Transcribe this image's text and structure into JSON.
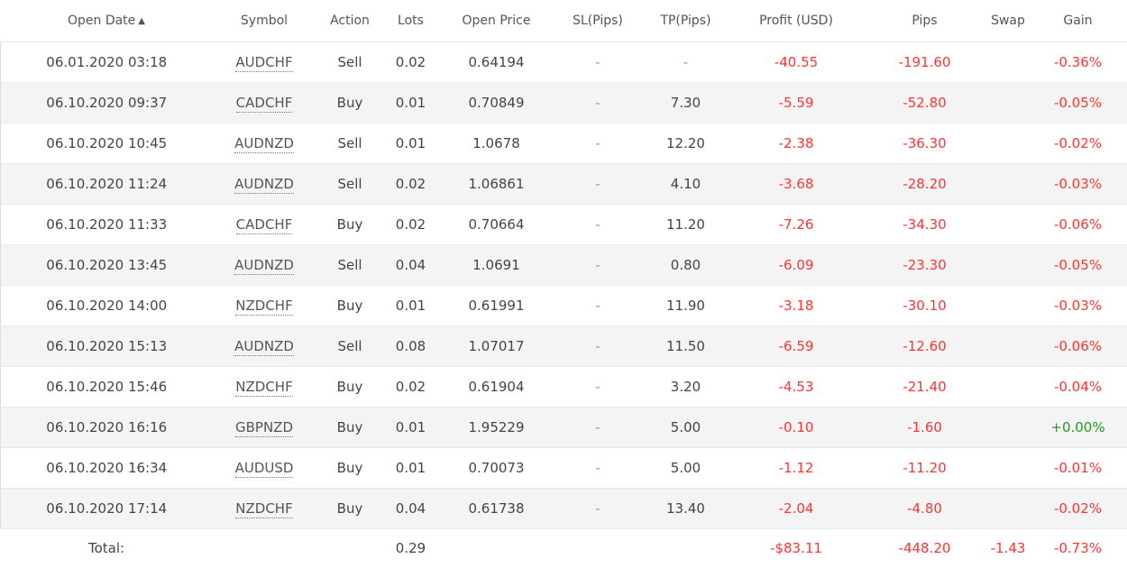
{
  "headers": {
    "open_date": "Open Date",
    "sort_arrow": "▲",
    "symbol": "Symbol",
    "action": "Action",
    "lots": "Lots",
    "open_price": "Open Price",
    "sl": "SL(Pips)",
    "tp": "TP(Pips)",
    "profit": "Profit (USD)",
    "pips": "Pips",
    "swap": "Swap",
    "gain": "Gain"
  },
  "rows": [
    {
      "date": "06.01.2020 03:18",
      "symbol": "AUDCHF",
      "action": "Sell",
      "lots": "0.02",
      "price": "0.64194",
      "sl": "-",
      "tp": "-",
      "profit": "-40.55",
      "pips": "-191.60",
      "swap": "",
      "gain": "-0.36%"
    },
    {
      "date": "06.10.2020 09:37",
      "symbol": "CADCHF",
      "action": "Buy",
      "lots": "0.01",
      "price": "0.70849",
      "sl": "-",
      "tp": "7.30",
      "profit": "-5.59",
      "pips": "-52.80",
      "swap": "",
      "gain": "-0.05%"
    },
    {
      "date": "06.10.2020 10:45",
      "symbol": "AUDNZD",
      "action": "Sell",
      "lots": "0.01",
      "price": "1.0678",
      "sl": "-",
      "tp": "12.20",
      "profit": "-2.38",
      "pips": "-36.30",
      "swap": "",
      "gain": "-0.02%"
    },
    {
      "date": "06.10.2020 11:24",
      "symbol": "AUDNZD",
      "action": "Sell",
      "lots": "0.02",
      "price": "1.06861",
      "sl": "-",
      "tp": "4.10",
      "profit": "-3.68",
      "pips": "-28.20",
      "swap": "",
      "gain": "-0.03%"
    },
    {
      "date": "06.10.2020 11:33",
      "symbol": "CADCHF",
      "action": "Buy",
      "lots": "0.02",
      "price": "0.70664",
      "sl": "-",
      "tp": "11.20",
      "profit": "-7.26",
      "pips": "-34.30",
      "swap": "",
      "gain": "-0.06%"
    },
    {
      "date": "06.10.2020 13:45",
      "symbol": "AUDNZD",
      "action": "Sell",
      "lots": "0.04",
      "price": "1.0691",
      "sl": "-",
      "tp": "0.80",
      "profit": "-6.09",
      "pips": "-23.30",
      "swap": "",
      "gain": "-0.05%"
    },
    {
      "date": "06.10.2020 14:00",
      "symbol": "NZDCHF",
      "action": "Buy",
      "lots": "0.01",
      "price": "0.61991",
      "sl": "-",
      "tp": "11.90",
      "profit": "-3.18",
      "pips": "-30.10",
      "swap": "",
      "gain": "-0.03%"
    },
    {
      "date": "06.10.2020 15:13",
      "symbol": "AUDNZD",
      "action": "Sell",
      "lots": "0.08",
      "price": "1.07017",
      "sl": "-",
      "tp": "11.50",
      "profit": "-6.59",
      "pips": "-12.60",
      "swap": "",
      "gain": "-0.06%"
    },
    {
      "date": "06.10.2020 15:46",
      "symbol": "NZDCHF",
      "action": "Buy",
      "lots": "0.02",
      "price": "0.61904",
      "sl": "-",
      "tp": "3.20",
      "profit": "-4.53",
      "pips": "-21.40",
      "swap": "",
      "gain": "-0.04%"
    },
    {
      "date": "06.10.2020 16:16",
      "symbol": "GBPNZD",
      "action": "Buy",
      "lots": "0.01",
      "price": "1.95229",
      "sl": "-",
      "tp": "5.00",
      "profit": "-0.10",
      "pips": "-1.60",
      "swap": "",
      "gain": "+0.00%"
    },
    {
      "date": "06.10.2020 16:34",
      "symbol": "AUDUSD",
      "action": "Buy",
      "lots": "0.01",
      "price": "0.70073",
      "sl": "-",
      "tp": "5.00",
      "profit": "-1.12",
      "pips": "-11.20",
      "swap": "",
      "gain": "-0.01%"
    },
    {
      "date": "06.10.2020 17:14",
      "symbol": "NZDCHF",
      "action": "Buy",
      "lots": "0.04",
      "price": "0.61738",
      "sl": "-",
      "tp": "13.40",
      "profit": "-2.04",
      "pips": "-4.80",
      "swap": "",
      "gain": "-0.02%"
    }
  ],
  "total": {
    "label": "Total:",
    "lots": "0.29",
    "profit": "-$83.11",
    "pips": "-448.20",
    "swap": "-1.43",
    "gain": "-0.73%"
  },
  "colors": {
    "negative": "#ff3333",
    "positive": "#1aa01a",
    "row_alt": "#f4f4f4"
  }
}
